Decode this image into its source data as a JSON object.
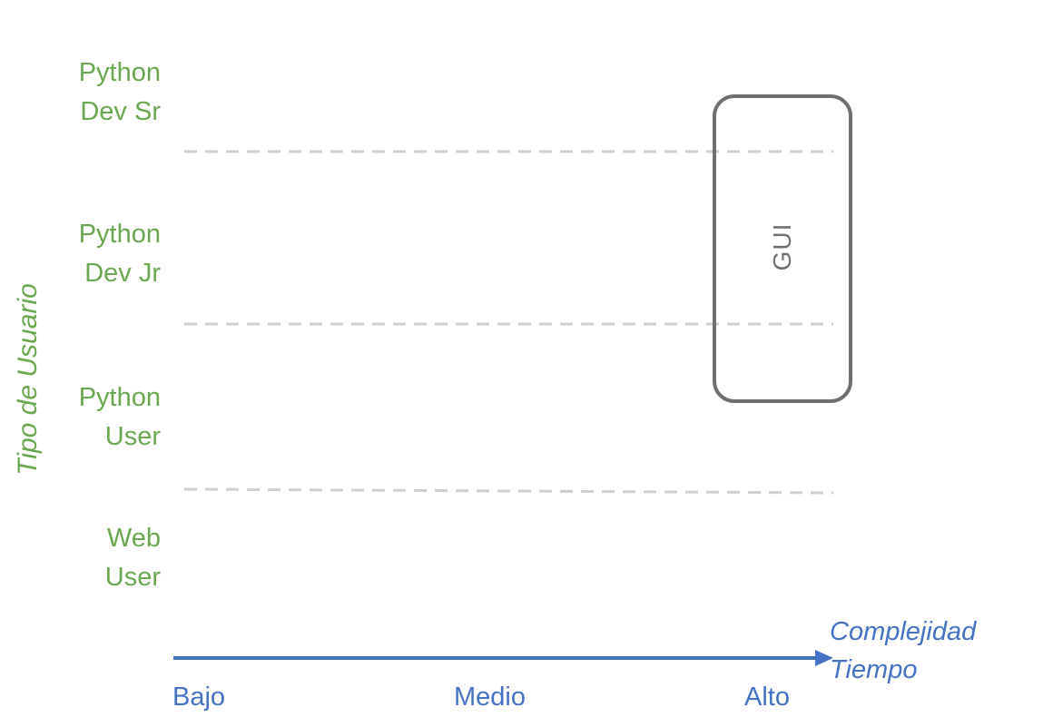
{
  "y_axis": {
    "label": "Tipo de Usuario",
    "categories": [
      {
        "line1": "Python",
        "line2": "Dev Sr"
      },
      {
        "line1": "Python",
        "line2": "Dev Jr"
      },
      {
        "line1": "Python",
        "line2": "User"
      },
      {
        "line1": "Web",
        "line2": "User"
      }
    ]
  },
  "x_axis": {
    "label_line1": "Complejidad",
    "label_line2": "Tiempo",
    "ticks": [
      "Bajo",
      "Medio",
      "Alto"
    ]
  },
  "nodes": [
    {
      "label": "GUI"
    }
  ],
  "colors": {
    "user_axis": "#6aa84f",
    "complexity_axis": "#4472c4",
    "node_border": "#707070",
    "divider": "#d0d0d0"
  }
}
